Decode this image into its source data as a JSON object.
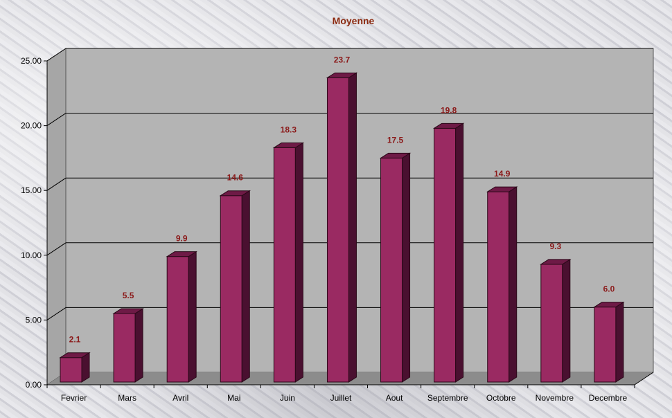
{
  "chart_data": {
    "type": "bar",
    "title": "Moyenne",
    "categories": [
      "Fevrier",
      "Mars",
      "Avril",
      "Mai",
      "Juin",
      "Juillet",
      "Aout",
      "Septembre",
      "Octobre",
      "Novembre",
      "Decembre"
    ],
    "values": [
      2.1,
      5.5,
      9.9,
      14.6,
      18.3,
      23.7,
      17.5,
      19.8,
      14.9,
      9.3,
      6.0
    ],
    "data_labels": [
      "2.1",
      "5.5",
      "9.9",
      "14.6",
      "18.3",
      "23.7",
      "17.5",
      "19.8",
      "14.9",
      "9.3",
      "6.0"
    ],
    "yticks": [
      "0.00",
      "5.00",
      "10.00",
      "15.00",
      "20.00",
      "25.00"
    ],
    "ylim": [
      0,
      25
    ],
    "grid": true,
    "xlabel": "",
    "ylabel": "",
    "colors": {
      "bar_front": "#9a2a62",
      "bar_side": "#4a1030",
      "bar_top": "#6e1a46",
      "wall": "#b4b4b4",
      "floor": "#8c8c8c",
      "label": "#8b1a1a"
    }
  }
}
